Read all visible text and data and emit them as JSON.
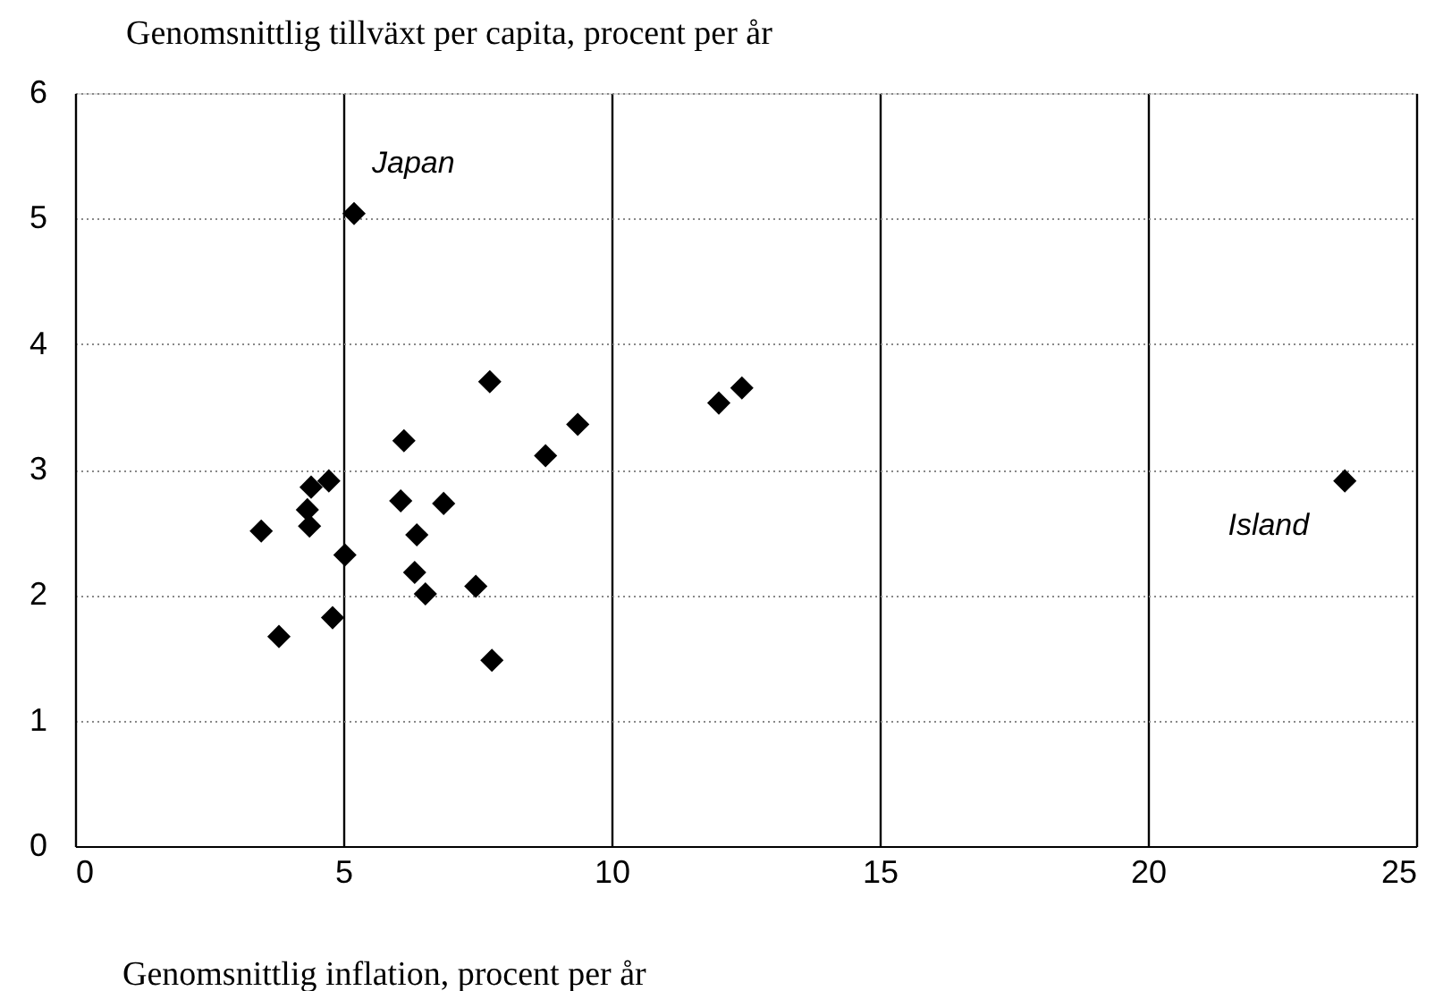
{
  "chart_data": {
    "type": "scatter",
    "xlabel": "Genomsnittlig inflation, procent per år",
    "ylabel": "Genomsnittlig tillväxt per capita, procent per år",
    "series": [
      {
        "color": "#000000",
        "x": [
          5.2,
          7.73,
          6.13,
          9.37,
          8.77,
          12.0,
          12.43,
          23.67,
          4.73,
          4.4,
          4.33,
          4.37,
          3.47,
          6.07,
          6.87,
          6.37,
          5.03,
          6.33,
          6.53,
          7.47,
          4.8,
          3.8,
          7.77
        ],
        "values": [
          5.04,
          3.7,
          3.23,
          3.36,
          3.11,
          3.53,
          3.65,
          2.91,
          2.91,
          2.86,
          2.68,
          2.55,
          2.51,
          2.75,
          2.73,
          2.48,
          2.32,
          2.18,
          2.01,
          2.07,
          1.82,
          1.67,
          1.48
        ]
      }
    ],
    "xlim": [
      0,
      25
    ],
    "xticks": [
      0,
      5,
      10,
      15,
      20,
      25
    ],
    "ylim": [
      0,
      6
    ],
    "yticks": [
      0,
      1,
      2,
      3,
      4,
      5,
      6
    ],
    "grid": true,
    "marker": "diamond",
    "annotations": [
      {
        "text": "Japan",
        "x": 5.2,
        "y": 5.04
      },
      {
        "text": "Island",
        "x": 23.67,
        "y": 2.91
      }
    ]
  }
}
